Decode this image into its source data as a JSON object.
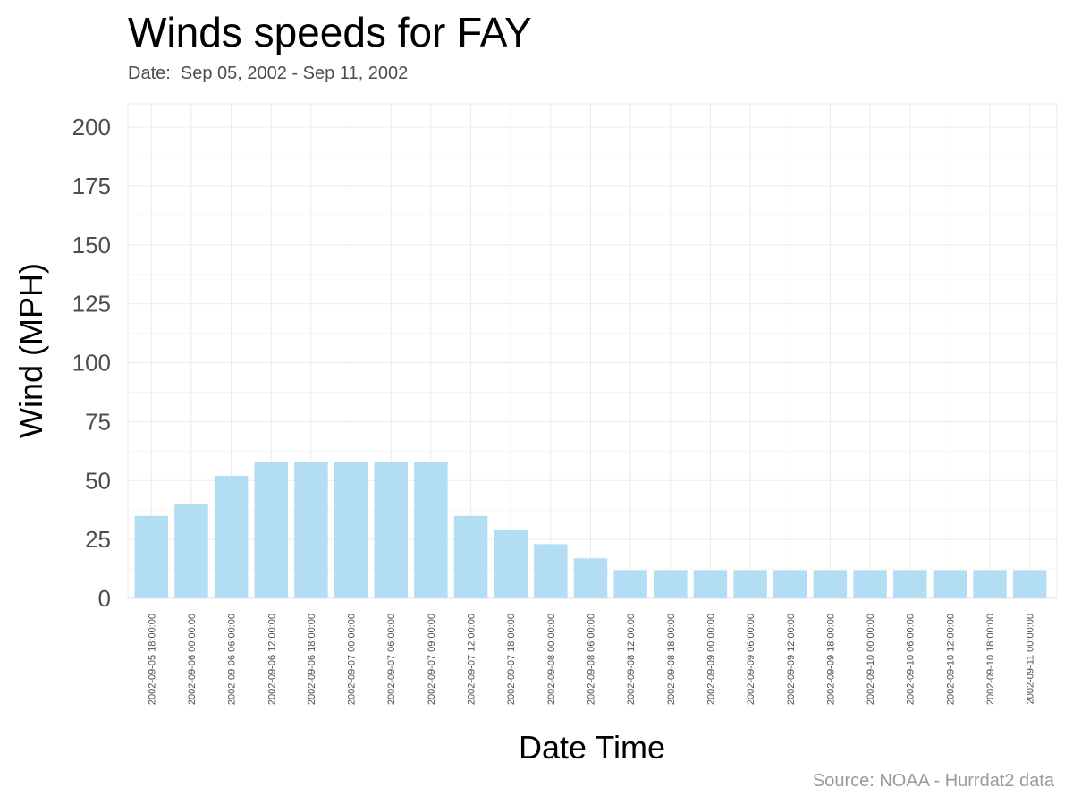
{
  "chart_data": {
    "type": "bar",
    "title": "Winds speeds for FAY",
    "subtitle": "Date:  Sep 05, 2002 - Sep 11, 2002",
    "caption": "Source: NOAA - Hurrdat2 data",
    "xlabel": "Date Time",
    "ylabel": "Wind (MPH)",
    "ylim": [
      0,
      210
    ],
    "yticks": [
      0,
      25,
      50,
      75,
      100,
      125,
      150,
      175,
      200
    ],
    "grid": true,
    "legend": "none",
    "bar_color": "#b3ddf2",
    "categories": [
      "2002-09-05 18:00:00",
      "2002-09-06 00:00:00",
      "2002-09-06 06:00:00",
      "2002-09-06 12:00:00",
      "2002-09-06 18:00:00",
      "2002-09-07 00:00:00",
      "2002-09-07 06:00:00",
      "2002-09-07 09:00:00",
      "2002-09-07 12:00:00",
      "2002-09-07 18:00:00",
      "2002-09-08 00:00:00",
      "2002-09-08 06:00:00",
      "2002-09-08 12:00:00",
      "2002-09-08 18:00:00",
      "2002-09-09 00:00:00",
      "2002-09-09 06:00:00",
      "2002-09-09 12:00:00",
      "2002-09-09 18:00:00",
      "2002-09-10 00:00:00",
      "2002-09-10 06:00:00",
      "2002-09-10 12:00:00",
      "2002-09-10 18:00:00",
      "2002-09-11 00:00:00"
    ],
    "values": [
      35,
      40,
      52,
      58,
      58,
      58,
      58,
      58,
      35,
      29,
      23,
      17,
      12,
      12,
      12,
      12,
      12,
      12,
      12,
      12,
      12,
      12,
      12
    ]
  }
}
